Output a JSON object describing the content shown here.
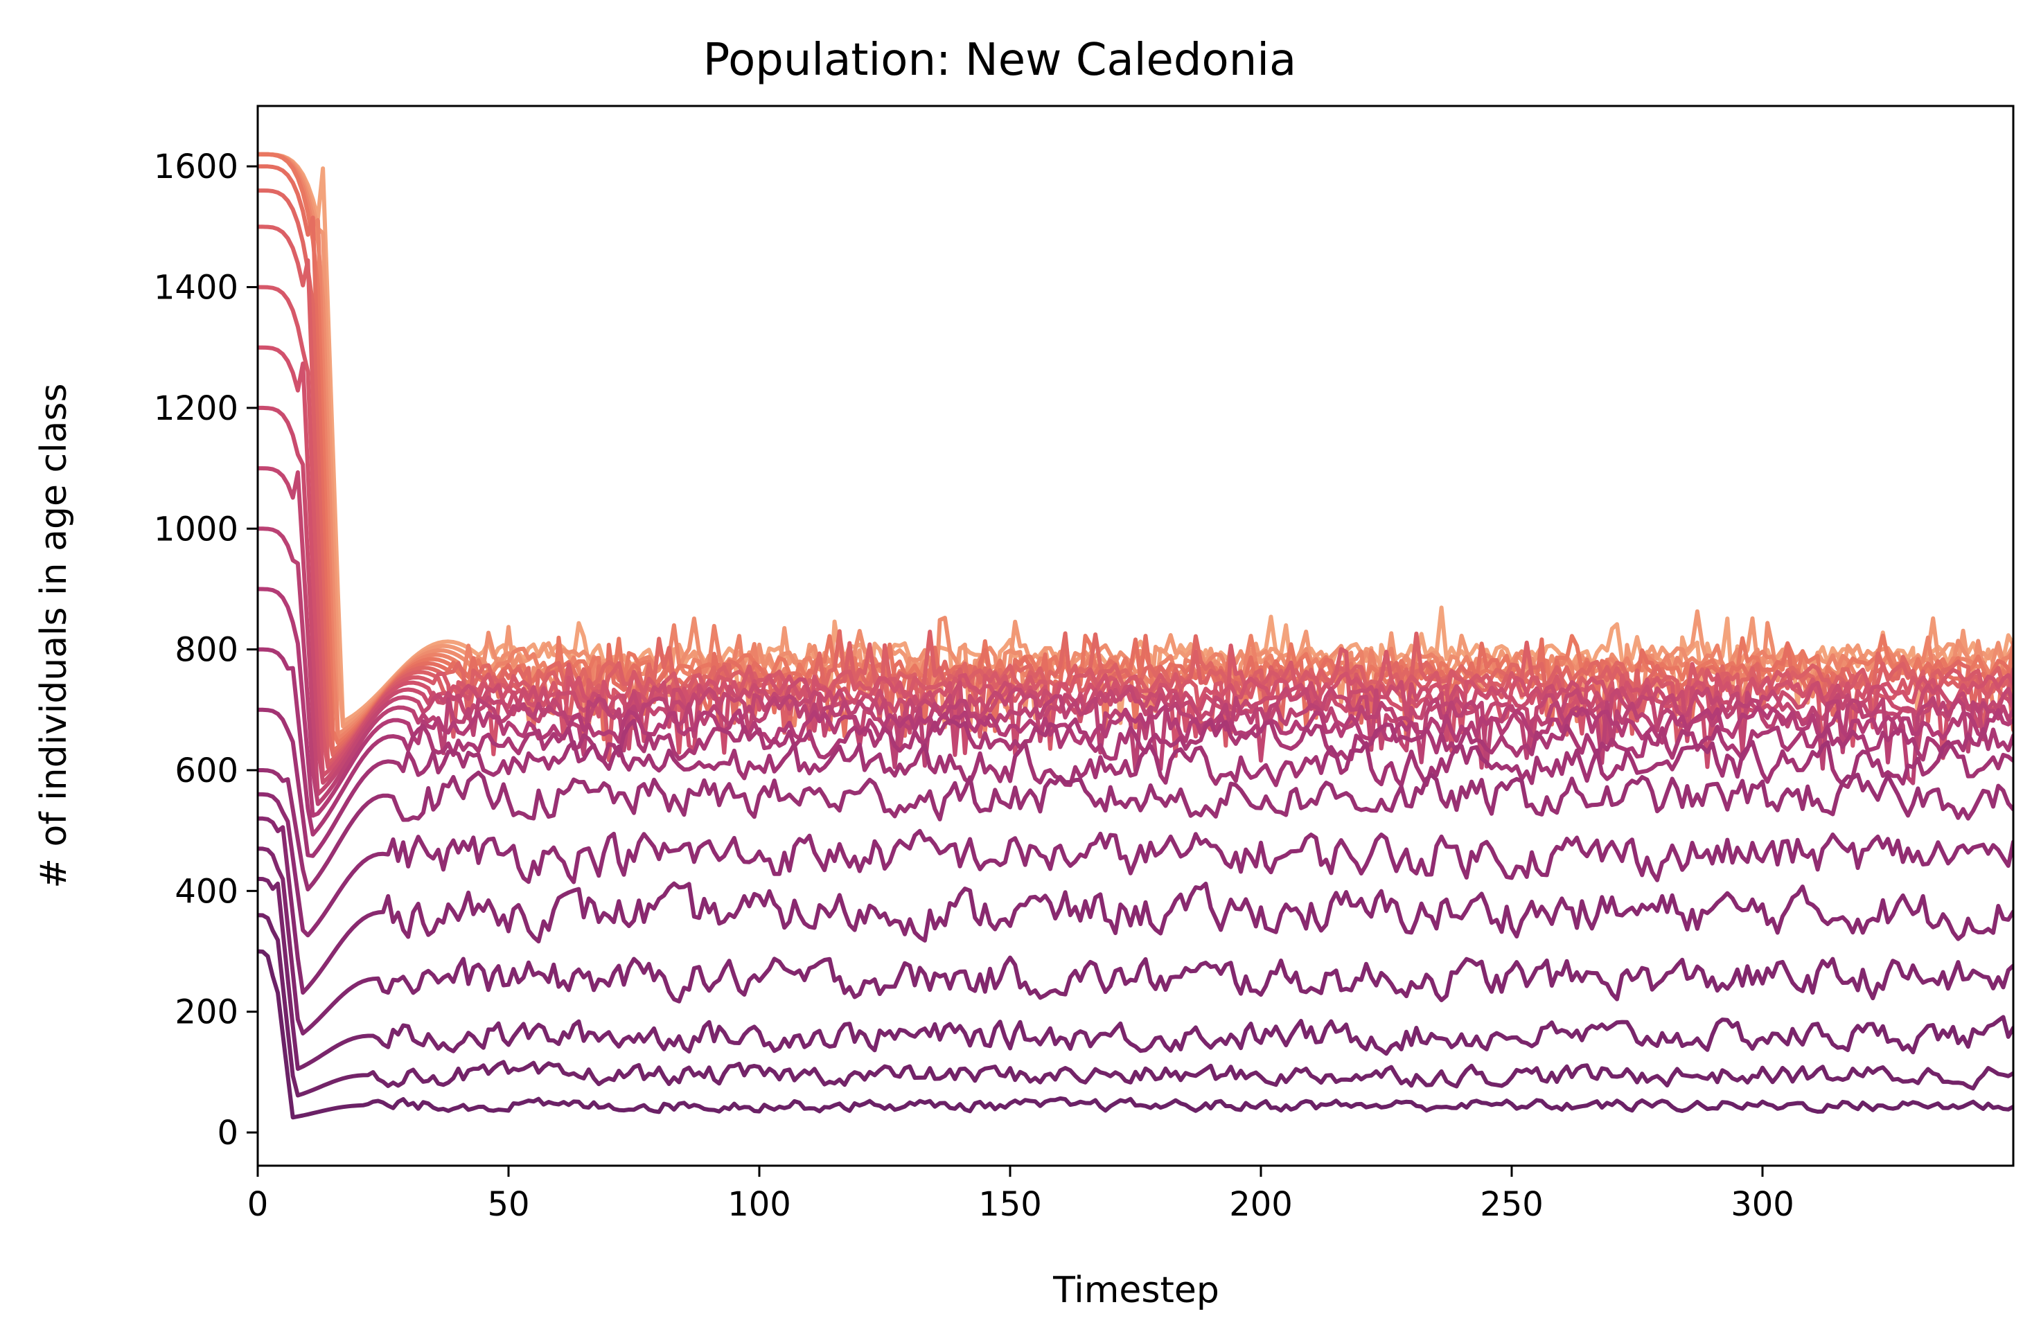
{
  "chart_data": {
    "type": "line",
    "title": "Population: New Caledonia",
    "xlabel": "Timestep",
    "ylabel": "# of individuals in age class",
    "xlim": [
      0,
      350
    ],
    "ylim": [
      -55,
      1700
    ],
    "xticks": [
      0,
      50,
      100,
      150,
      200,
      250,
      300
    ],
    "yticks": [
      0,
      200,
      400,
      600,
      800,
      1000,
      1200,
      1400,
      1600
    ],
    "grid": false,
    "legend": "none",
    "colormap": [
      "#6b2166",
      "#8c2a70",
      "#b13a75",
      "#d2526c",
      "#e8735e",
      "#f3a37c"
    ],
    "series_count": 23,
    "x_step": 1,
    "series_profile": [
      {
        "index": 0,
        "start": 300,
        "early_min": 25,
        "steady": 45,
        "noise": 8
      },
      {
        "index": 1,
        "start": 360,
        "early_min": 60,
        "steady": 95,
        "noise": 14
      },
      {
        "index": 2,
        "start": 420,
        "early_min": 105,
        "steady": 160,
        "noise": 20
      },
      {
        "index": 3,
        "start": 470,
        "early_min": 160,
        "steady": 255,
        "noise": 26
      },
      {
        "index": 4,
        "start": 520,
        "early_min": 230,
        "steady": 365,
        "noise": 30
      },
      {
        "index": 5,
        "start": 560,
        "early_min": 320,
        "steady": 460,
        "noise": 30
      },
      {
        "index": 6,
        "start": 600,
        "early_min": 400,
        "steady": 555,
        "noise": 28
      },
      {
        "index": 7,
        "start": 700,
        "early_min": 450,
        "steady": 610,
        "noise": 26
      },
      {
        "index": 8,
        "start": 800,
        "early_min": 490,
        "steady": 650,
        "noise": 24
      },
      {
        "index": 9,
        "start": 900,
        "early_min": 520,
        "steady": 675,
        "noise": 22
      },
      {
        "index": 10,
        "start": 1000,
        "early_min": 540,
        "steady": 695,
        "noise": 20
      },
      {
        "index": 11,
        "start": 1100,
        "early_min": 560,
        "steady": 710,
        "noise": 20
      },
      {
        "index": 12,
        "start": 1200,
        "early_min": 575,
        "steady": 722,
        "noise": 20
      },
      {
        "index": 13,
        "start": 1300,
        "early_min": 590,
        "steady": 732,
        "noise": 20
      },
      {
        "index": 14,
        "start": 1400,
        "early_min": 600,
        "steady": 740,
        "noise": 20
      },
      {
        "index": 15,
        "start": 1500,
        "early_min": 610,
        "steady": 748,
        "noise": 20
      },
      {
        "index": 16,
        "start": 1560,
        "early_min": 620,
        "steady": 754,
        "noise": 20
      },
      {
        "index": 17,
        "start": 1600,
        "early_min": 630,
        "steady": 760,
        "noise": 20
      },
      {
        "index": 18,
        "start": 1620,
        "early_min": 640,
        "steady": 766,
        "noise": 20
      },
      {
        "index": 19,
        "start": 1620,
        "early_min": 650,
        "steady": 772,
        "noise": 20
      },
      {
        "index": 20,
        "start": 1620,
        "early_min": 660,
        "steady": 778,
        "noise": 20
      },
      {
        "index": 21,
        "start": 1620,
        "early_min": 670,
        "steady": 784,
        "noise": 20
      },
      {
        "index": 22,
        "start": 1620,
        "early_min": 680,
        "steady": 790,
        "noise": 20
      }
    ]
  }
}
